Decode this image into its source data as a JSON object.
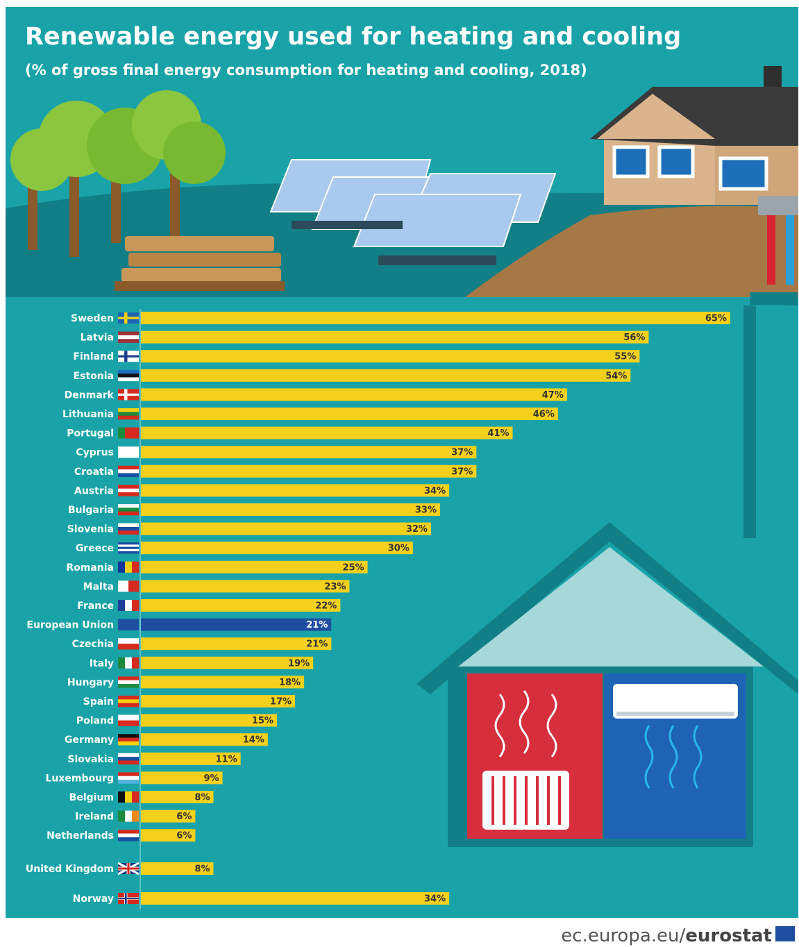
{
  "chart_data": {
    "type": "bar",
    "orientation": "horizontal",
    "title": "Renewable energy used for heating and cooling",
    "subtitle": "(% of gross final energy consumption for heating and cooling, 2018)",
    "categories": [
      "Sweden",
      "Latvia",
      "Finland",
      "Estonia",
      "Denmark",
      "Lithuania",
      "Portugal",
      "Cyprus",
      "Croatia",
      "Austria",
      "Bulgaria",
      "Slovenia",
      "Greece",
      "Romania",
      "Malta",
      "France",
      "European Union",
      "Czechia",
      "Italy",
      "Hungary",
      "Spain",
      "Poland",
      "Germany",
      "Slovakia",
      "Luxembourg",
      "Belgium",
      "Ireland",
      "Netherlands",
      "United Kingdom",
      "Norway"
    ],
    "values": [
      65,
      56,
      55,
      54,
      47,
      46,
      41,
      37,
      37,
      34,
      33,
      32,
      30,
      25,
      23,
      22,
      21,
      21,
      19,
      18,
      17,
      15,
      14,
      11,
      9,
      8,
      6,
      6,
      8,
      34
    ],
    "value_labels": [
      "65%",
      "56%",
      "55%",
      "54%",
      "47%",
      "46%",
      "41%",
      "37%",
      "37%",
      "34%",
      "33%",
      "32%",
      "30%",
      "25%",
      "23%",
      "22%",
      "21%",
      "21%",
      "19%",
      "18%",
      "17%",
      "15%",
      "14%",
      "11%",
      "9%",
      "8%",
      "6%",
      "6%",
      "8%",
      "34%"
    ],
    "colors": [
      "#f3d01c",
      "#f3d01c",
      "#f3d01c",
      "#f3d01c",
      "#f3d01c",
      "#f3d01c",
      "#f3d01c",
      "#f3d01c",
      "#f3d01c",
      "#f3d01c",
      "#f3d01c",
      "#f3d01c",
      "#f3d01c",
      "#f3d01c",
      "#f3d01c",
      "#f3d01c",
      "#1f4ea1",
      "#f3d01c",
      "#f3d01c",
      "#f3d01c",
      "#f3d01c",
      "#f3d01c",
      "#f3d01c",
      "#f3d01c",
      "#f3d01c",
      "#f3d01c",
      "#f3d01c",
      "#f3d01c",
      "#f3d01c",
      "#f3d01c"
    ],
    "label_colors": [
      "#333333",
      "#333333",
      "#333333",
      "#333333",
      "#333333",
      "#333333",
      "#333333",
      "#333333",
      "#333333",
      "#333333",
      "#333333",
      "#333333",
      "#333333",
      "#333333",
      "#333333",
      "#333333",
      "#ffffff",
      "#333333",
      "#333333",
      "#333333",
      "#333333",
      "#333333",
      "#333333",
      "#333333",
      "#333333",
      "#333333",
      "#333333",
      "#333333",
      "#333333",
      "#333333"
    ]
  },
  "footer": {
    "site": "ec.europa.eu/",
    "brand": "eurostat"
  }
}
